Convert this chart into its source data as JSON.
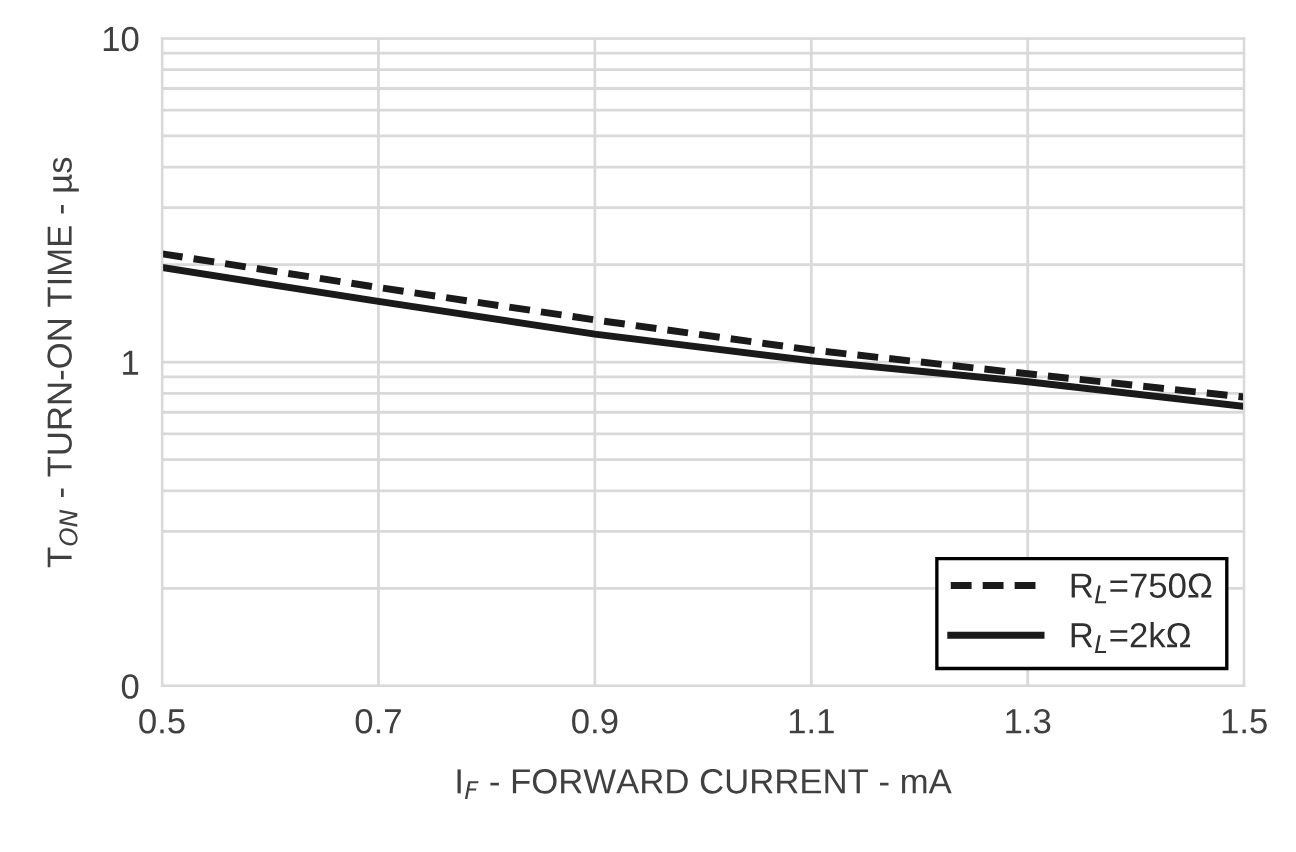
{
  "chart_data": {
    "type": "line",
    "xlabel": "I$_{F}$ - FORWARD CURRENT - mA",
    "ylabel": "T$_{ON}$ - TURN-ON TIME - µs",
    "x": [
      0.5,
      0.7,
      0.9,
      1.1,
      1.3,
      1.5
    ],
    "series": [
      {
        "name": "R$_{L}$=750Ω",
        "color": "#1a1a1a",
        "line_style": "dashed",
        "values": [
          2.16,
          1.7,
          1.35,
          1.09,
          0.92,
          0.78
        ]
      },
      {
        "name": "R$_{L}$=2kΩ",
        "color": "#1a1a1a",
        "line_style": "solid",
        "values": [
          1.96,
          1.54,
          1.22,
          1.01,
          0.87,
          0.73
        ]
      }
    ],
    "log": "y",
    "xlim": [
      0.5,
      1.5
    ],
    "xticks": [
      0.5,
      0.7,
      0.9,
      1.1,
      1.3,
      1.5
    ],
    "ylim": [
      0.1,
      10
    ],
    "yticks": [
      {
        "value": 0.1,
        "label": "0"
      },
      1,
      10
    ],
    "grid": true,
    "legend": "bottom right",
    "marker": "none"
  }
}
